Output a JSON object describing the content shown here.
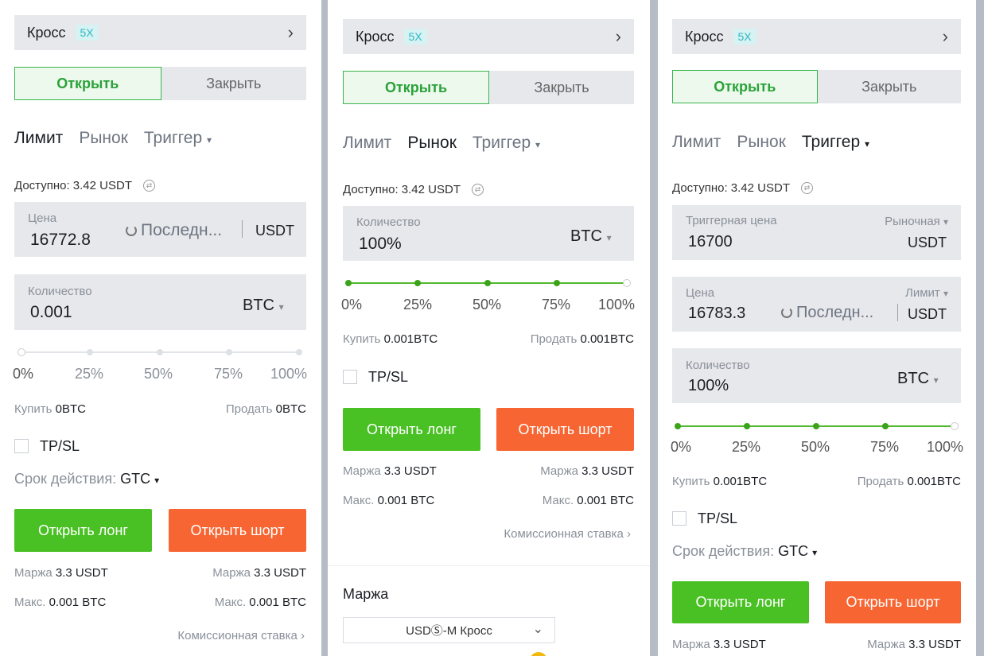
{
  "common": {
    "mode": "Кросс",
    "leverage": "5X",
    "open_tab": "Открыть",
    "close_tab": "Закрыть",
    "order_types": [
      "Лимит",
      "Рынок",
      "Триггер"
    ],
    "available_label": "Доступно:",
    "available_value": "3.42 USDT",
    "price_label": "Цена",
    "last_price_btn": "Последн...",
    "quote_unit": "USDT",
    "qty_label": "Количество",
    "base_unit": "BTC",
    "pcts": [
      "0%",
      "25%",
      "50%",
      "75%",
      "100%"
    ],
    "buy_label": "Купить",
    "sell_label": "Продать",
    "tpsl": "TP/SL",
    "validity_label": "Срок действия:",
    "validity_value": "GTC",
    "open_long": "Открыть лонг",
    "open_short": "Открыть шорт",
    "margin_label": "Маржа",
    "margin_value": "3.3 USDT",
    "max_label": "Макс.",
    "max_value": "0.001 BTC",
    "fee_link": "Комиссионная ставка"
  },
  "panel1": {
    "active_tab": "Лимит",
    "price": "16772.8",
    "qty": "0.001",
    "slider_fraction": 0,
    "buy_amount": "0BTC",
    "sell_amount": "0BTC"
  },
  "panel2": {
    "active_tab": "Рынок",
    "qty": "100%",
    "slider_fraction": 1,
    "buy_amount": "0.001BTC",
    "sell_amount": "0.001BTC",
    "margin_section_title": "Маржа",
    "margin_select": "USDⓈ-M Кросс"
  },
  "panel3": {
    "active_tab": "Триггер",
    "trigger_price_label": "Триггерная цена",
    "trigger_type": "Рыночная",
    "trigger_price": "16700",
    "price_type": "Лимит",
    "price": "16783.3",
    "qty": "100%",
    "slider_fraction": 1,
    "buy_amount": "0.001BTC",
    "sell_amount": "0.001BTC"
  }
}
